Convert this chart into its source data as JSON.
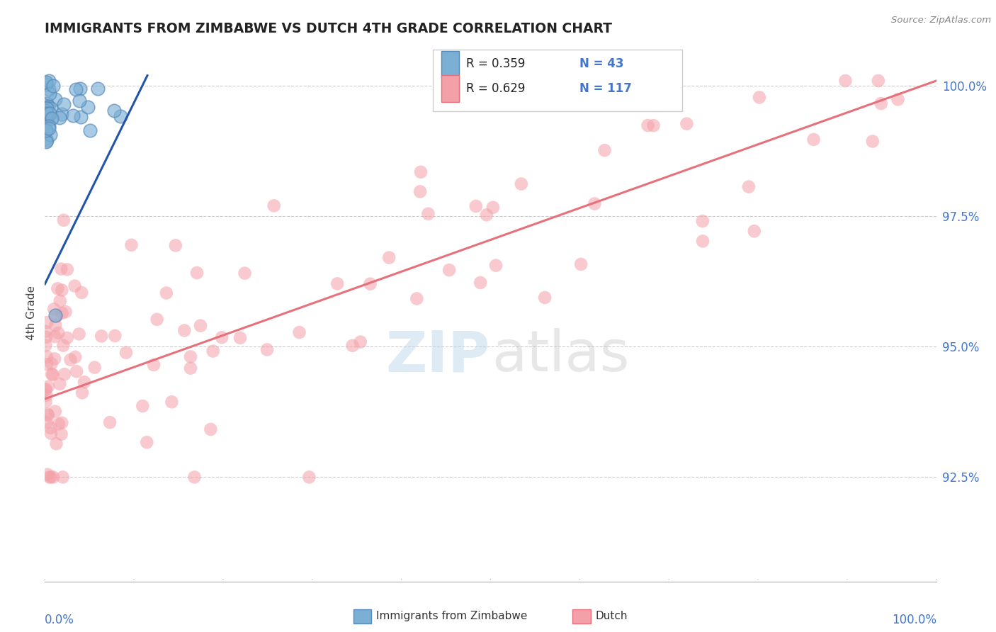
{
  "title": "IMMIGRANTS FROM ZIMBABWE VS DUTCH 4TH GRADE CORRELATION CHART",
  "source_text": "Source: ZipAtlas.com",
  "ylabel": "4th Grade",
  "ytick_labels": [
    "92.5%",
    "95.0%",
    "97.5%",
    "100.0%"
  ],
  "ytick_values": [
    0.925,
    0.95,
    0.975,
    1.0
  ],
  "xrange": [
    0.0,
    1.0
  ],
  "yrange": [
    0.905,
    1.008
  ],
  "color_blue": "#7BAFD4",
  "color_pink": "#F4A0A8",
  "color_blue_line": "#2255AA",
  "color_pink_line": "#E8707A",
  "color_blue_text": "#4477CC",
  "watermark_zip_color": "#B8D4E8",
  "watermark_atlas_color": "#BBBBBB",
  "blue_line_x": [
    0.0,
    0.115
  ],
  "blue_line_y": [
    0.962,
    1.002
  ],
  "pink_line_x": [
    0.0,
    1.0
  ],
  "pink_line_y": [
    0.94,
    1.001
  ]
}
